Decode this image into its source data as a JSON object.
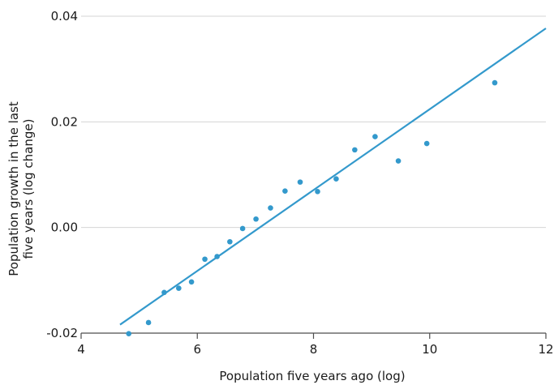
{
  "chart_data": {
    "type": "scatter",
    "title": "",
    "xlabel": "Population five years ago (log)",
    "ylabel_lines": [
      "Population growth in the last",
      "five years (log change)"
    ],
    "xlim": [
      4,
      12
    ],
    "ylim": [
      -0.02,
      0.04
    ],
    "x_ticks": [
      4,
      6,
      8,
      10,
      12
    ],
    "x_tick_labels": [
      "4",
      "6",
      "8",
      "10",
      "12"
    ],
    "y_ticks": [
      -0.02,
      0.0,
      0.02,
      0.04
    ],
    "y_tick_labels": [
      "-0.02",
      "0.00",
      "0.02",
      "0.04"
    ],
    "grid": "horizontal",
    "colors": {
      "points": "#3399cc",
      "line": "#3399cc",
      "grid": "#d4d4d4",
      "axis": "#4d4d4d"
    },
    "series": [
      {
        "type": "scatter",
        "x": [
          4.82,
          5.16,
          5.43,
          5.68,
          5.9,
          6.13,
          6.34,
          6.56,
          6.78,
          7.01,
          7.26,
          7.51,
          7.77,
          8.07,
          8.39,
          8.71,
          9.06,
          9.46,
          9.95,
          11.12
        ],
        "y": [
          -0.0201,
          -0.018,
          -0.0123,
          -0.0115,
          -0.0103,
          -0.006,
          -0.0055,
          -0.0027,
          -0.0002,
          0.0016,
          0.0037,
          0.0069,
          0.0086,
          0.0068,
          0.0092,
          0.0147,
          0.0172,
          0.0126,
          0.0159,
          0.0274
        ]
      },
      {
        "type": "line",
        "x": [
          4.67,
          12.0
        ],
        "y": [
          -0.0184,
          0.0377
        ]
      }
    ]
  }
}
